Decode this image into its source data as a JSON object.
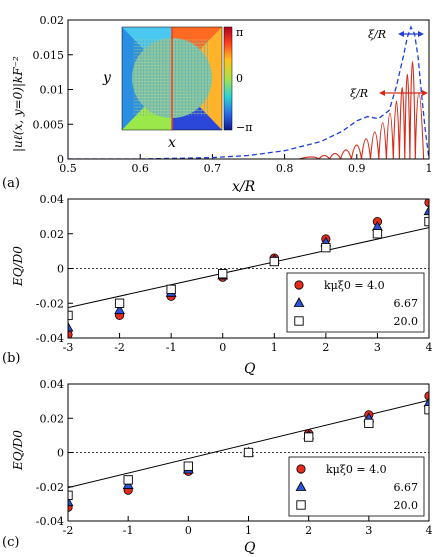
{
  "chart_data": [
    {
      "type": "line",
      "panel_label": "(a)",
      "xlabel": "x/R",
      "ylabel": "|uℓ(x, y=0)|kF⁻²",
      "xlim": [
        0.5,
        1.0
      ],
      "ylim": [
        0,
        0.02
      ],
      "xticks": [
        "0.5",
        "0.6",
        "0.7",
        "0.8",
        "0.9",
        "1"
      ],
      "yticks": [
        "0",
        "0.005",
        "0.01",
        "0.015",
        "0.02"
      ],
      "annotations": [
        "ξ/R",
        "ξ/R"
      ],
      "inset": {
        "xlabel": "x",
        "ylabel": "y",
        "colorbar_ticks": [
          "π",
          "0",
          "−π"
        ]
      },
      "series": [
        {
          "style": "dashed",
          "color": "#1e3fd8",
          "points": [
            [
              0.5,
              0
            ],
            [
              0.6,
              0
            ],
            [
              0.7,
              0.0002
            ],
            [
              0.75,
              0.0005
            ],
            [
              0.8,
              0.0012
            ],
            [
              0.85,
              0.0025
            ],
            [
              0.88,
              0.004
            ],
            [
              0.9,
              0.0055
            ],
            [
              0.915,
              0.0061
            ],
            [
              0.93,
              0.0058
            ],
            [
              0.945,
              0.007
            ],
            [
              0.955,
              0.0105
            ],
            [
              0.965,
              0.015
            ],
            [
              0.97,
              0.0175
            ],
            [
              0.975,
              0.019
            ],
            [
              0.98,
              0.018
            ],
            [
              0.985,
              0.0145
            ],
            [
              0.99,
              0.009
            ],
            [
              0.995,
              0.004
            ],
            [
              1.0,
              0
            ]
          ]
        },
        {
          "style": "solid",
          "color": "#d42a1a",
          "points": [
            [
              0.5,
              0
            ],
            [
              0.8,
              0
            ],
            [
              0.84,
              0.0003
            ],
            [
              0.855,
              0.0005
            ],
            [
              0.87,
              0.0008
            ],
            [
              0.885,
              0.0013
            ],
            [
              0.9,
              0.002
            ],
            [
              0.913,
              0.0029
            ],
            [
              0.925,
              0.0039
            ],
            [
              0.936,
              0.0052
            ],
            [
              0.946,
              0.0066
            ],
            [
              0.955,
              0.0083
            ],
            [
              0.963,
              0.0103
            ],
            [
              0.97,
              0.0122
            ],
            [
              0.977,
              0.014
            ],
            [
              0.985,
              0.0095
            ],
            [
              1.0,
              0
            ]
          ]
        }
      ]
    },
    {
      "type": "scatter",
      "panel_label": "(b)",
      "xlabel": "Q",
      "ylabel": "EQ/D0",
      "xlim": [
        -3,
        4
      ],
      "ylim": [
        -0.04,
        0.04
      ],
      "xticks": [
        "-3",
        "-2",
        "-1",
        "0",
        "1",
        "2",
        "3",
        "4"
      ],
      "yticks": [
        "-0.04",
        "-0.02",
        "0",
        "0.02",
        "0.04"
      ],
      "legend_title": "kμξ0 = 4.0",
      "legend_position": "bottom-right",
      "fit_line": [
        [
          -3,
          -0.0225
        ],
        [
          4,
          0.0235
        ]
      ],
      "series": [
        {
          "name": "kμξ0 = 4.0",
          "marker": "circle",
          "color": "#e8291e",
          "x": [
            -3,
            -2,
            -1,
            0,
            1,
            2,
            3,
            4
          ],
          "y": [
            -0.038,
            -0.027,
            -0.016,
            -0.005,
            0.006,
            0.017,
            0.027,
            0.038
          ]
        },
        {
          "name": "6.67",
          "marker": "triangle",
          "color": "#2b52d8",
          "x": [
            -3,
            -2,
            -1,
            0,
            1,
            2,
            3,
            4
          ],
          "y": [
            -0.034,
            -0.024,
            -0.014,
            -0.004,
            0.005,
            0.015,
            0.024,
            0.033
          ]
        },
        {
          "name": "20.0",
          "marker": "square",
          "color": "#ffffff",
          "x": [
            -3,
            -2,
            -1,
            0,
            1,
            2,
            3,
            4
          ],
          "y": [
            -0.027,
            -0.02,
            -0.012,
            -0.003,
            0.004,
            0.012,
            0.02,
            0.027
          ]
        }
      ]
    },
    {
      "type": "scatter",
      "panel_label": "(c)",
      "xlabel": "Q",
      "ylabel": "EQ/D0",
      "xlim": [
        -2,
        4
      ],
      "ylim": [
        -0.04,
        0.04
      ],
      "xticks": [
        "-2",
        "-1",
        "0",
        "1",
        "2",
        "3",
        "4"
      ],
      "yticks": [
        "-0.04",
        "-0.02",
        "0",
        "0.02",
        "0.04"
      ],
      "legend_title": "kμξ0 = 4.0",
      "legend_position": "bottom-right",
      "fit_line": [
        [
          -2,
          -0.0205
        ],
        [
          4,
          0.0305
        ]
      ],
      "series": [
        {
          "name": "kμξ0 = 4.0",
          "marker": "circle",
          "color": "#e8291e",
          "x": [
            -2,
            -1,
            0,
            1,
            2,
            3,
            4
          ],
          "y": [
            -0.032,
            -0.022,
            -0.011,
            0.0,
            0.011,
            0.022,
            0.033
          ]
        },
        {
          "name": "6.67",
          "marker": "triangle",
          "color": "#2b52d8",
          "x": [
            -2,
            -1,
            0,
            1,
            2,
            3,
            4
          ],
          "y": [
            -0.029,
            -0.019,
            -0.01,
            0.0,
            0.01,
            0.02,
            0.029
          ]
        },
        {
          "name": "20.0",
          "marker": "square",
          "color": "#ffffff",
          "x": [
            -2,
            -1,
            0,
            1,
            2,
            3,
            4
          ],
          "y": [
            -0.025,
            -0.016,
            -0.008,
            0.0,
            0.009,
            0.017,
            0.025
          ]
        }
      ]
    }
  ]
}
